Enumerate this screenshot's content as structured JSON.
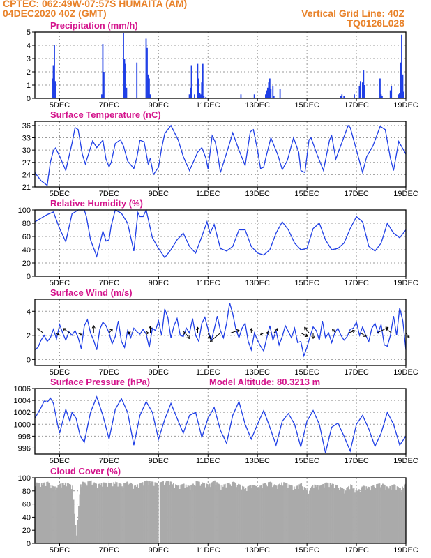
{
  "header": {
    "left_line1": "CPTEC:   062:49W-07:57S   HUMAITA (AM)",
    "left_line2": "04DEC2020 40Z (GMT)",
    "right_line1": "Vertical Grid Line: 40Z",
    "right_line2": "TQ0126L028"
  },
  "model_altitude_label": "Model Altitude: 80.3213 m",
  "colors": {
    "header": "#e8822a",
    "title": "#d4148c",
    "line": "#1f3fe6",
    "cloud": "#aaaaaa"
  },
  "x_axis": {
    "tick_labels": [
      "5DEC",
      "7DEC",
      "9DEC",
      "11DEC",
      "13DEC",
      "15DEC",
      "17DEC",
      "19DEC"
    ],
    "tick_hours": [
      24,
      72,
      120,
      168,
      216,
      264,
      312,
      360
    ],
    "range_hours": [
      0,
      360
    ]
  },
  "chart_data": [
    {
      "type": "bar",
      "title": "Precipitation (mm/h)",
      "yticks": [
        "0",
        "1",
        "2",
        "3",
        "4",
        "5"
      ],
      "ylim": [
        0,
        5
      ],
      "x": [
        0,
        17,
        18,
        19,
        20,
        65,
        66,
        67,
        86,
        87,
        88,
        89,
        99,
        108,
        109,
        110,
        111,
        112,
        150,
        151,
        152,
        155,
        158,
        159,
        160,
        161,
        162,
        163,
        164,
        166,
        200,
        213,
        224,
        225,
        226,
        227,
        228,
        229,
        231,
        232,
        238,
        297,
        298,
        300,
        310,
        315,
        316,
        318,
        319,
        320,
        335,
        336,
        337,
        345,
        346,
        353,
        354,
        355,
        356,
        357,
        358
      ],
      "y": [
        0,
        1.5,
        2.5,
        4.0,
        1.3,
        0.3,
        4.1,
        2.0,
        4.9,
        3.0,
        2.6,
        0.8,
        2.7,
        4.5,
        3.8,
        1.8,
        1.5,
        0.3,
        0.3,
        0.8,
        2.5,
        0.3,
        2.6,
        1.5,
        0.4,
        0.3,
        1.2,
        2.6,
        0.2,
        0.1,
        0.3,
        0.3,
        0.3,
        0.6,
        0.8,
        1.2,
        1.5,
        0.7,
        0.9,
        0.2,
        0.7,
        0.2,
        0.3,
        0.2,
        0.3,
        0.9,
        1.3,
        1.2,
        2.1,
        1.0,
        1.5,
        0.3,
        0.2,
        0.6,
        0.9,
        0.3,
        0.4,
        2.7,
        4.8,
        1.8,
        0.5
      ]
    },
    {
      "type": "line",
      "title": "Surface Temperature (nC)",
      "yticks": [
        "21",
        "24",
        "27",
        "30",
        "33",
        "36"
      ],
      "ylim": [
        21,
        37
      ],
      "x": [
        0,
        6,
        12,
        15,
        18,
        20,
        24,
        30,
        36,
        39,
        42,
        46,
        49,
        56,
        60,
        66,
        69,
        72,
        74,
        78,
        83,
        86,
        90,
        96,
        99,
        102,
        106,
        110,
        112,
        115,
        120,
        123,
        126,
        132,
        139,
        144,
        150,
        158,
        162,
        166,
        168,
        172,
        175,
        178,
        180,
        187,
        192,
        198,
        204,
        209,
        212,
        216,
        219,
        222,
        224,
        229,
        236,
        240,
        245,
        251,
        256,
        258,
        262,
        266,
        268,
        274,
        280,
        286,
        288,
        292,
        304,
        306,
        312,
        318,
        322,
        328,
        335,
        340,
        345,
        348,
        353,
        360
      ],
      "y": [
        24.5,
        22.5,
        21.4,
        27,
        29.9,
        30.5,
        28.5,
        25.0,
        31.6,
        35.5,
        35.0,
        29.0,
        26.6,
        32.2,
        30.6,
        32.4,
        27.8,
        25.9,
        27.0,
        31.6,
        32.5,
        31.0,
        27.3,
        25.5,
        28.2,
        32.4,
        32.0,
        26.5,
        28.0,
        24.0,
        25.8,
        30.5,
        34.0,
        36.0,
        32.5,
        28.4,
        25.0,
        29.5,
        30.6,
        28.0,
        25.4,
        33.5,
        32.0,
        28.0,
        24.5,
        30.0,
        34.2,
        30.0,
        26.2,
        34.5,
        35.0,
        30.0,
        25.5,
        25.8,
        28.0,
        33.0,
        28.6,
        25.2,
        27.5,
        33.0,
        29.5,
        25.0,
        24.5,
        32.5,
        33.0,
        28.8,
        25.0,
        32.5,
        33.5,
        27.8,
        36.0,
        35.5,
        30.0,
        24.5,
        28.4,
        31.0,
        35.8,
        35.0,
        28.0,
        25.0,
        32.1,
        29.0
      ]
    },
    {
      "type": "line",
      "title": "Relative Humidity (%)",
      "yticks": [
        "0",
        "20",
        "40",
        "60",
        "80",
        "100"
      ],
      "ylim": [
        0,
        100
      ],
      "x": [
        0,
        12,
        18,
        24,
        30,
        36,
        42,
        48,
        50,
        54,
        60,
        66,
        69,
        72,
        74,
        78,
        84,
        90,
        96,
        100,
        102,
        105,
        108,
        114,
        120,
        126,
        132,
        138,
        144,
        150,
        156,
        162,
        167,
        170,
        174,
        180,
        186,
        192,
        198,
        204,
        210,
        216,
        222,
        228,
        234,
        240,
        246,
        252,
        258,
        264,
        270,
        276,
        282,
        288,
        294,
        300,
        306,
        312,
        318,
        324,
        330,
        336,
        342,
        348,
        354,
        360
      ],
      "y": [
        82,
        93,
        97,
        72,
        52,
        94,
        100,
        100,
        90,
        55,
        30,
        68,
        53,
        55,
        76,
        100,
        95,
        80,
        38,
        96,
        90,
        90,
        100,
        58,
        42,
        28,
        40,
        55,
        65,
        45,
        35,
        60,
        82,
        65,
        78,
        42,
        38,
        45,
        70,
        70,
        45,
        35,
        32,
        40,
        65,
        82,
        70,
        50,
        40,
        42,
        72,
        80,
        55,
        40,
        42,
        50,
        72,
        90,
        82,
        45,
        38,
        50,
        80,
        65,
        58,
        70
      ]
    },
    {
      "type": "line",
      "title": "Surface Wind (m/s)",
      "yticks": [
        "0",
        "2",
        "4"
      ],
      "ylim": [
        -0.5,
        5
      ],
      "x": [
        0,
        3,
        6,
        9,
        12,
        15,
        18,
        21,
        24,
        27,
        30,
        33,
        36,
        39,
        42,
        45,
        48,
        51,
        54,
        57,
        60,
        63,
        66,
        69,
        72,
        75,
        78,
        81,
        84,
        87,
        90,
        93,
        96,
        99,
        102,
        105,
        108,
        111,
        114,
        117,
        120,
        123,
        126,
        129,
        132,
        135,
        138,
        141,
        144,
        147,
        150,
        153,
        156,
        159,
        162,
        165,
        168,
        171,
        174,
        177,
        180,
        183,
        186,
        189,
        192,
        195,
        198,
        201,
        204,
        207,
        210,
        213,
        216,
        219,
        222,
        225,
        228,
        231,
        234,
        237,
        240,
        243,
        246,
        249,
        252,
        255,
        258,
        261,
        264,
        267,
        270,
        273,
        276,
        279,
        282,
        285,
        288,
        291,
        294,
        297,
        300,
        303,
        306,
        309,
        312,
        315,
        318,
        321,
        324,
        327,
        330,
        333,
        336,
        339,
        342,
        345,
        348,
        351,
        354,
        357,
        360
      ],
      "y": [
        0.8,
        1.0,
        1.6,
        2.0,
        1.5,
        1.8,
        2.5,
        1.7,
        2.9,
        2.2,
        1.6,
        2.3,
        2.0,
        2.4,
        1.8,
        0.9,
        2.8,
        3.3,
        2.2,
        1.6,
        0.8,
        2.5,
        3.1,
        2.8,
        2.2,
        1.3,
        1.9,
        3.2,
        1.5,
        1.0,
        2.4,
        1.8,
        2.6,
        2.3,
        2.1,
        2.5,
        2.1,
        1.0,
        2.6,
        2.4,
        3.2,
        2.0,
        4.2,
        3.5,
        1.8,
        2.8,
        3.4,
        2.0,
        1.9,
        2.6,
        2.2,
        3.4,
        2.0,
        1.5,
        3.0,
        3.5,
        2.5,
        1.5,
        2.5,
        3.6,
        2.4,
        1.8,
        3.0,
        4.7,
        3.8,
        2.5,
        1.8,
        2.6,
        3.0,
        1.5,
        0.8,
        2.2,
        1.6,
        1.1,
        0.7,
        1.8,
        2.8,
        1.6,
        2.4,
        1.2,
        1.9,
        2.8,
        2.3,
        1.8,
        2.6,
        1.4,
        1.5,
        0.3,
        1.0,
        1.9,
        2.7,
        2.4,
        1.6,
        3.2,
        1.8,
        2.2,
        1.4,
        2.2,
        2.6,
        2.0,
        1.6,
        1.9,
        2.5,
        2.6,
        3.1,
        2.0,
        2.7,
        2.0,
        1.5,
        2.6,
        3.0,
        2.2,
        2.9,
        1.2,
        1.1,
        2.0,
        3.6,
        2.0,
        4.3,
        3.2,
        0.8
      ],
      "vectors": {
        "x": [
          8,
          20,
          34,
          42,
          57,
          72,
          88,
          96,
          106,
          112,
          144,
          146,
          158,
          168,
          180,
          190,
          210,
          222,
          230,
          232,
          258,
          266,
          270,
          292,
          304,
          316,
          332,
          346,
          360
        ],
        "u": [
          -1.0,
          0.6,
          -1.2,
          0.6,
          0.0,
          0.6,
          0.8,
          -1.0,
          0.8,
          0.0,
          0.4,
          0.7,
          0.0,
          0.4,
          -1.8,
          1.5,
          0.0,
          -0.6,
          -1.0,
          0.6,
          1.2,
          -0.8,
          0.0,
          -0.6,
          1.2,
          1.0,
          2.0,
          -1.0,
          0.6
        ],
        "v": [
          0.8,
          -0.4,
          0.8,
          -0.4,
          1.3,
          0.7,
          0.0,
          0.0,
          0.0,
          1.2,
          0.0,
          -1.0,
          1.0,
          -1.0,
          -1.5,
          0.5,
          0.8,
          -0.4,
          0.0,
          0.8,
          -0.6,
          1.0,
          -1.0,
          0.6,
          0.4,
          -0.6,
          1.0,
          0.8,
          -0.8
        ]
      }
    },
    {
      "type": "line",
      "title": "Surface Pressure (hPa)",
      "yticks": [
        "996",
        "998",
        "1000",
        "1002",
        "1004",
        "1006"
      ],
      "ylim": [
        995,
        1006
      ],
      "x": [
        0,
        6,
        9,
        12,
        15,
        18,
        22,
        24,
        30,
        34,
        36,
        40,
        44,
        48,
        54,
        60,
        66,
        72,
        78,
        84,
        90,
        96,
        102,
        108,
        114,
        120,
        126,
        132,
        138,
        144,
        150,
        156,
        162,
        168,
        174,
        180,
        186,
        192,
        198,
        204,
        210,
        216,
        222,
        228,
        234,
        240,
        246,
        252,
        258,
        264,
        270,
        276,
        282,
        288,
        294,
        300,
        306,
        312,
        318,
        324,
        330,
        336,
        342,
        348,
        354,
        360
      ],
      "y": [
        1001,
        1002.8,
        1003.9,
        1003.7,
        1004.4,
        1003.5,
        1000,
        998.5,
        1002.5,
        1000.5,
        1002,
        1001,
        998,
        997,
        1002,
        1004.6,
        1001.5,
        997.5,
        1002.5,
        1004.3,
        1002,
        996.5,
        1001.5,
        1003.8,
        1002,
        997.5,
        1000.8,
        1003.5,
        1001,
        998.5,
        1001.5,
        1002,
        997.8,
        1001,
        1002.8,
        999,
        996.8,
        1001.5,
        1003.8,
        1000,
        997.5,
        1000,
        1002.3,
        999.5,
        996.5,
        1000.5,
        1001.8,
        1000,
        996.2,
        1000.5,
        1002.3,
        1000,
        995.2,
        999.5,
        1000.2,
        998,
        995.5,
        1000,
        1001.5,
        999.2,
        996.3,
        998.5,
        1002,
        1000,
        996.5,
        998
      ]
    },
    {
      "type": "bar",
      "title": "Cloud Cover (%)",
      "yticks": [
        "0",
        "20",
        "40",
        "60",
        "80",
        "100"
      ],
      "ylim": [
        0,
        100
      ],
      "x": [
        0,
        6,
        12,
        18,
        24,
        30,
        36,
        38,
        40,
        42,
        44,
        46,
        48,
        54,
        60,
        66,
        72,
        78,
        84,
        90,
        96,
        102,
        108,
        114,
        119,
        120,
        121,
        126,
        132,
        138,
        144,
        150,
        156,
        162,
        168,
        174,
        180,
        186,
        192,
        198,
        204,
        210,
        216,
        222,
        228,
        234,
        240,
        246,
        252,
        258,
        264,
        270,
        276,
        282,
        288,
        294,
        300,
        306,
        312,
        318,
        324,
        330,
        336,
        342,
        348,
        354,
        360
      ],
      "y": [
        93,
        92,
        94,
        86,
        91,
        93,
        88,
        45,
        12,
        60,
        90,
        94,
        93,
        96,
        90,
        93,
        92,
        94,
        90,
        95,
        88,
        92,
        96,
        94,
        92,
        0,
        93,
        96,
        94,
        88,
        91,
        87,
        95,
        93,
        90,
        96,
        88,
        92,
        94,
        90,
        85,
        90,
        86,
        92,
        94,
        88,
        94,
        90,
        86,
        92,
        80,
        90,
        88,
        93,
        91,
        88,
        82,
        90,
        80,
        88,
        86,
        90,
        92,
        86,
        90,
        84,
        92
      ]
    }
  ]
}
